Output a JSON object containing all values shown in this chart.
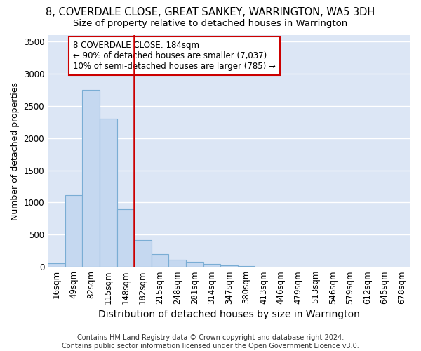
{
  "title1": "8, COVERDALE CLOSE, GREAT SANKEY, WARRINGTON, WA5 3DH",
  "title2": "Size of property relative to detached houses in Warrington",
  "xlabel": "Distribution of detached houses by size in Warrington",
  "ylabel": "Number of detached properties",
  "bar_labels": [
    "16sqm",
    "49sqm",
    "82sqm",
    "115sqm",
    "148sqm",
    "182sqm",
    "215sqm",
    "248sqm",
    "281sqm",
    "314sqm",
    "347sqm",
    "380sqm",
    "413sqm",
    "446sqm",
    "479sqm",
    "513sqm",
    "546sqm",
    "579sqm",
    "612sqm",
    "645sqm",
    "678sqm"
  ],
  "bar_values": [
    55,
    1110,
    2750,
    2300,
    900,
    420,
    195,
    115,
    80,
    50,
    25,
    15,
    5,
    2,
    1,
    0,
    0,
    0,
    0,
    0,
    0
  ],
  "bar_color": "#c5d8f0",
  "bar_edge_color": "#7aadd4",
  "plot_bg_color": "#dce6f5",
  "fig_bg_color": "#ffffff",
  "grid_color": "#ffffff",
  "vline_color": "#cc0000",
  "vline_x_index": 5,
  "annotation_text": "8 COVERDALE CLOSE: 184sqm\n← 90% of detached houses are smaller (7,037)\n10% of semi-detached houses are larger (785) →",
  "annotation_box_edgecolor": "#cc0000",
  "footnote": "Contains HM Land Registry data © Crown copyright and database right 2024.\nContains public sector information licensed under the Open Government Licence v3.0.",
  "ylim": [
    0,
    3600
  ],
  "yticks": [
    0,
    500,
    1000,
    1500,
    2000,
    2500,
    3000,
    3500
  ],
  "title1_fontsize": 10.5,
  "title2_fontsize": 9.5,
  "xlabel_fontsize": 10,
  "ylabel_fontsize": 9,
  "tick_fontsize": 8.5,
  "annot_fontsize": 8.5,
  "footnote_fontsize": 7
}
